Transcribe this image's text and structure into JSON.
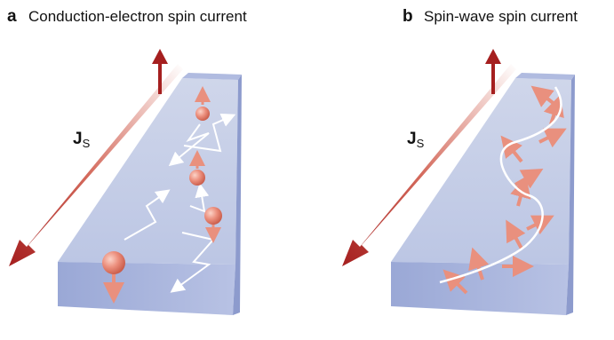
{
  "panels": [
    {
      "label": "a",
      "title": "Conduction-electron spin current",
      "symbol": "J",
      "subscript": "S"
    },
    {
      "label": "b",
      "title": "Spin-wave spin current",
      "symbol": "J",
      "subscript": "S"
    }
  ]
}
